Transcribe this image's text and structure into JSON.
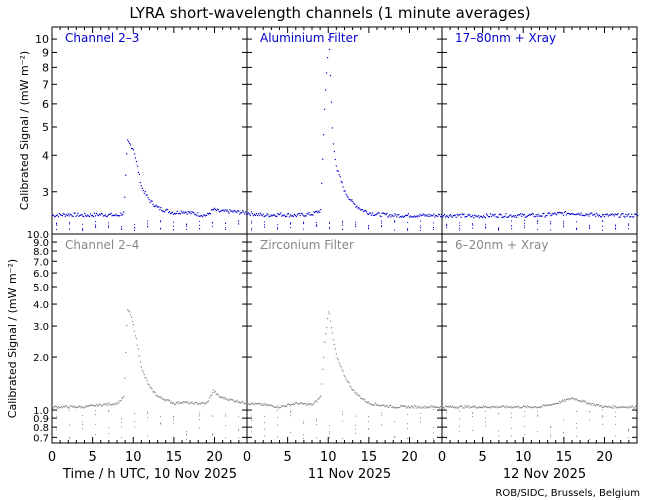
{
  "title": "LYRA short-wavelength channels (1 minute averages)",
  "footer": "ROB/SIDC, Brussels, Belgium",
  "colors": {
    "top": "#0000cc",
    "bottom": "#888888",
    "axis": "#000000"
  },
  "x_axis": {
    "ticks": [
      "0",
      "5",
      "10",
      "15",
      "20"
    ],
    "day_labels": [
      "Time / h UTC, 10 Nov 2025",
      "11 Nov 2025",
      "12 Nov 2025"
    ],
    "range_hours_per_day": [
      0,
      24
    ]
  },
  "rows": [
    {
      "ylabel": "Calibrated Signal / (mW m⁻²)",
      "yticks": [
        "3",
        "4",
        "5",
        "6",
        "7",
        "8",
        "9",
        "10"
      ],
      "ylim": [
        2.15,
        11.0
      ],
      "scale": "log",
      "panels": [
        "Channel 2–3",
        "Aluminium Filter",
        "17–80nm + Xray"
      ]
    },
    {
      "ylabel": "Calibrated Signal / (mW m⁻²)",
      "yticks": [
        "0.7",
        "0.8",
        "0.9",
        "1.0",
        "2.0",
        "3.0",
        "4.0",
        "5.0",
        "6.0",
        "7.0",
        "8.0",
        "9.0",
        "10.0"
      ],
      "ylim": [
        0.65,
        10.0
      ],
      "scale": "log",
      "panels": [
        "Channel 2–4",
        "Zirconium Filter",
        "6–20nm + Xray"
      ]
    }
  ],
  "chart_data": {
    "type": "scatter",
    "title": "LYRA short-wavelength channels (1 minute averages)",
    "xlabel": "Time / h UTC, 10 Nov 2025",
    "ylabel": "Calibrated Signal / (mW m⁻²)",
    "scale": "log",
    "x_unit": "hours since 00:00 UTC of each day",
    "series": [
      {
        "name": "Channel 2–3",
        "x": [
          0,
          2,
          4,
          6,
          8,
          8.8,
          9.2,
          9.6,
          10,
          10.5,
          11,
          12,
          13,
          14,
          15,
          16,
          17,
          18,
          19,
          19.8,
          20.5,
          22,
          24,
          26,
          28,
          30,
          32,
          33,
          33.5,
          34,
          34.5,
          35,
          36,
          37,
          38,
          39,
          40,
          42,
          44,
          46,
          48,
          50,
          52,
          54,
          56,
          58,
          60,
          62,
          64,
          66,
          68,
          70,
          72
        ],
        "values": [
          2.5,
          2.52,
          2.5,
          2.52,
          2.5,
          2.55,
          4.5,
          4.35,
          4.2,
          3.6,
          3.1,
          2.8,
          2.65,
          2.6,
          2.55,
          2.58,
          2.55,
          2.52,
          2.5,
          2.62,
          2.58,
          2.58,
          2.55,
          2.5,
          2.52,
          2.5,
          2.53,
          2.6,
          6,
          10.5,
          4.5,
          3.6,
          3.0,
          2.75,
          2.62,
          2.55,
          2.52,
          2.5,
          2.5,
          2.5,
          2.5,
          2.5,
          2.48,
          2.5,
          2.5,
          2.5,
          2.5,
          2.53,
          2.55,
          2.52,
          2.5,
          2.5,
          2.5
        ]
      },
      {
        "name": "Channel 2–4",
        "x": [
          0,
          2,
          4,
          6,
          8,
          8.8,
          9.2,
          9.6,
          10,
          10.5,
          11,
          12,
          13,
          14,
          15,
          16,
          17,
          18,
          19,
          19.8,
          20.5,
          22,
          24,
          26,
          28,
          30,
          32,
          33,
          33.5,
          34,
          34.5,
          35,
          36,
          37,
          38,
          39,
          40,
          42,
          44,
          46,
          48,
          50,
          52,
          54,
          56,
          58,
          60,
          62,
          64,
          66,
          68,
          70,
          72
        ],
        "values": [
          1.05,
          1.05,
          1.05,
          1.08,
          1.1,
          1.2,
          3.8,
          3.5,
          3.0,
          2.3,
          1.7,
          1.35,
          1.2,
          1.15,
          1.1,
          1.12,
          1.1,
          1.1,
          1.1,
          1.3,
          1.2,
          1.15,
          1.1,
          1.08,
          1.05,
          1.1,
          1.08,
          1.2,
          2.5,
          3.8,
          2.6,
          2.0,
          1.55,
          1.3,
          1.18,
          1.1,
          1.08,
          1.05,
          1.05,
          1.05,
          1.05,
          1.05,
          1.05,
          1.05,
          1.05,
          1.05,
          1.05,
          1.1,
          1.18,
          1.1,
          1.05,
          1.05,
          1.05
        ]
      }
    ]
  }
}
